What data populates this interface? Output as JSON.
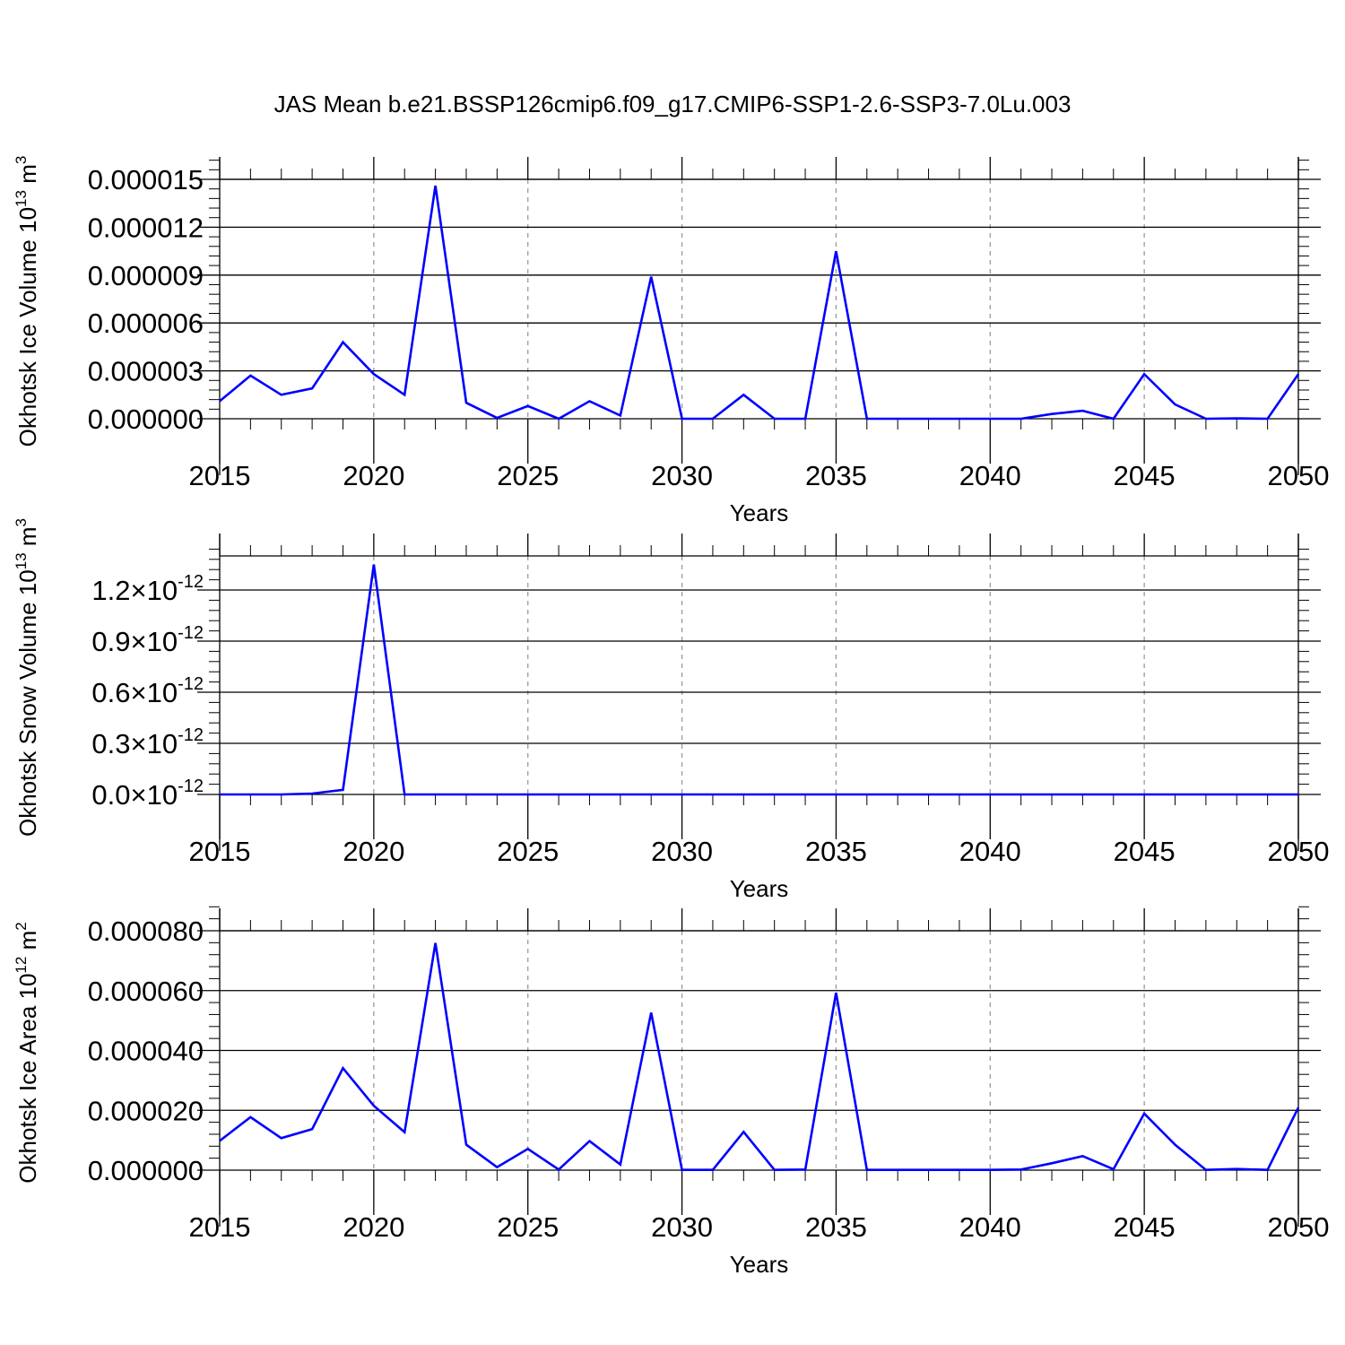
{
  "title": "JAS Mean b.e21.BSSP126cmip6.f09_g17.CMIP6-SSP1-2.6-SSP3-7.0Lu.003",
  "colors": {
    "line": "#0000ff",
    "axis": "#000000",
    "grid": "#9a9a9a"
  },
  "chart_data": [
    {
      "type": "line",
      "title": "JAS Mean b.e21.BSSP126cmip6.f09_g17.CMIP6-SSP1-2.6-SSP3-7.0Lu.003",
      "xlabel": "Years",
      "ylabel": {
        "main": "Okhotsk Ice Volume 10",
        "sup": "13",
        "unit": " m",
        "unit_sup": "3"
      },
      "xlim": [
        2015,
        2050
      ],
      "ylim": [
        0,
        1.54e-05
      ],
      "x_ticks": [
        2015,
        2020,
        2025,
        2030,
        2035,
        2040,
        2045,
        2050
      ],
      "x_tick_labels": [
        "2015",
        "2020",
        "2025",
        "2030",
        "2035",
        "2040",
        "2045",
        "2050"
      ],
      "y_ticks": [
        0,
        3e-06,
        6e-06,
        9e-06,
        1.2e-05,
        1.5e-05
      ],
      "y_tick_labels": [
        "0.000000",
        "0.000003",
        "0.000006",
        "0.000009",
        "0.000012",
        "0.000015"
      ],
      "grid": "vertical dashed at major x ticks",
      "x": [
        2015,
        2016,
        2017,
        2018,
        2019,
        2020,
        2021,
        2022,
        2023,
        2024,
        2025,
        2026,
        2027,
        2028,
        2029,
        2030,
        2031,
        2032,
        2033,
        2034,
        2035,
        2036,
        2037,
        2038,
        2039,
        2040,
        2041,
        2042,
        2043,
        2044,
        2045,
        2046,
        2047,
        2048,
        2049,
        2050
      ],
      "values": [
        1.1e-06,
        2.7e-06,
        1.5e-06,
        1.9e-06,
        4.8e-06,
        2.8e-06,
        1.5e-06,
        1.46e-05,
        1e-06,
        5e-08,
        8e-07,
        0.0,
        1.1e-06,
        2e-07,
        8.9e-06,
        0.0,
        0.0,
        1.5e-06,
        0.0,
        0.0,
        1.05e-05,
        0.0,
        0.0,
        0.0,
        0.0,
        0.0,
        0.0,
        3e-07,
        5e-07,
        0.0,
        2.8e-06,
        9e-07,
        0.0,
        2e-08,
        0.0,
        2.8e-06
      ]
    },
    {
      "type": "line",
      "xlabel": "Years",
      "ylabel": {
        "main": "Okhotsk Snow Volume 10",
        "sup": "13",
        "unit": " m",
        "unit_sup": "3"
      },
      "xlim": [
        2015,
        2050
      ],
      "ylim": [
        0,
        1.4e-12
      ],
      "x_ticks": [
        2015,
        2020,
        2025,
        2030,
        2035,
        2040,
        2045,
        2050
      ],
      "x_tick_labels": [
        "2015",
        "2020",
        "2025",
        "2030",
        "2035",
        "2040",
        "2045",
        "2050"
      ],
      "y_ticks": [
        0,
        3e-13,
        6e-13,
        9e-13,
        1.2e-12
      ],
      "y_tick_labels": [
        {
          "mantissa": "0.0",
          "times": "×",
          "base": "10",
          "exp": "-12"
        },
        {
          "mantissa": "0.3",
          "times": "×",
          "base": "10",
          "exp": "-12"
        },
        {
          "mantissa": "0.6",
          "times": "×",
          "base": "10",
          "exp": "-12"
        },
        {
          "mantissa": "0.9",
          "times": "×",
          "base": "10",
          "exp": "-12"
        },
        {
          "mantissa": "1.2",
          "times": "×",
          "base": "10",
          "exp": "-12"
        }
      ],
      "grid": "vertical dashed at major x ticks",
      "x": [
        2015,
        2016,
        2017,
        2018,
        2019,
        2020,
        2021,
        2022,
        2023,
        2024,
        2025,
        2026,
        2027,
        2028,
        2029,
        2030,
        2031,
        2032,
        2033,
        2034,
        2035,
        2036,
        2037,
        2038,
        2039,
        2040,
        2041,
        2042,
        2043,
        2044,
        2045,
        2046,
        2047,
        2048,
        2049,
        2050
      ],
      "values": [
        0,
        0,
        0,
        5e-15,
        2.7e-14,
        1.35e-12,
        0,
        0,
        0,
        0,
        0,
        0,
        0,
        0,
        0,
        0,
        0,
        0,
        0,
        0,
        0,
        0,
        0,
        0,
        0,
        0,
        0,
        0,
        0,
        0,
        0,
        0,
        0,
        0,
        0,
        0
      ]
    },
    {
      "type": "line",
      "xlabel": "Years",
      "ylabel": {
        "main": "Okhotsk Ice Area 10",
        "sup": "12",
        "unit": " m",
        "unit_sup": "2"
      },
      "xlim": [
        2015,
        2050
      ],
      "ylim": [
        0,
        8e-05
      ],
      "x_ticks": [
        2015,
        2020,
        2025,
        2030,
        2035,
        2040,
        2045,
        2050
      ],
      "x_tick_labels": [
        "2015",
        "2020",
        "2025",
        "2030",
        "2035",
        "2040",
        "2045",
        "2050"
      ],
      "y_ticks": [
        0,
        2e-05,
        4e-05,
        6e-05,
        8e-05
      ],
      "y_tick_labels": [
        "0.000000",
        "0.000020",
        "0.000040",
        "0.000060",
        "0.000080"
      ],
      "grid": "vertical dashed at major x ticks",
      "x": [
        2015,
        2016,
        2017,
        2018,
        2019,
        2020,
        2021,
        2022,
        2023,
        2024,
        2025,
        2026,
        2027,
        2028,
        2029,
        2030,
        2031,
        2032,
        2033,
        2034,
        2035,
        2036,
        2037,
        2038,
        2039,
        2040,
        2041,
        2042,
        2043,
        2044,
        2045,
        2046,
        2047,
        2048,
        2049,
        2050
      ],
      "values": [
        9.8e-06,
        1.77e-05,
        1.07e-05,
        1.37e-05,
        3.41e-05,
        2.15e-05,
        1.27e-05,
        7.59e-05,
        8.5e-06,
        1e-06,
        7.1e-06,
        2e-07,
        9.7e-06,
        1.9e-06,
        5.26e-05,
        1e-07,
        1e-07,
        1.28e-05,
        1e-07,
        2e-07,
        5.93e-05,
        1e-07,
        1e-07,
        1e-07,
        1e-07,
        1e-07,
        2e-07,
        2.3e-06,
        4.7e-06,
        3e-07,
        1.89e-05,
        8.5e-06,
        1e-07,
        4e-07,
        1e-07,
        2.09e-05
      ]
    }
  ]
}
